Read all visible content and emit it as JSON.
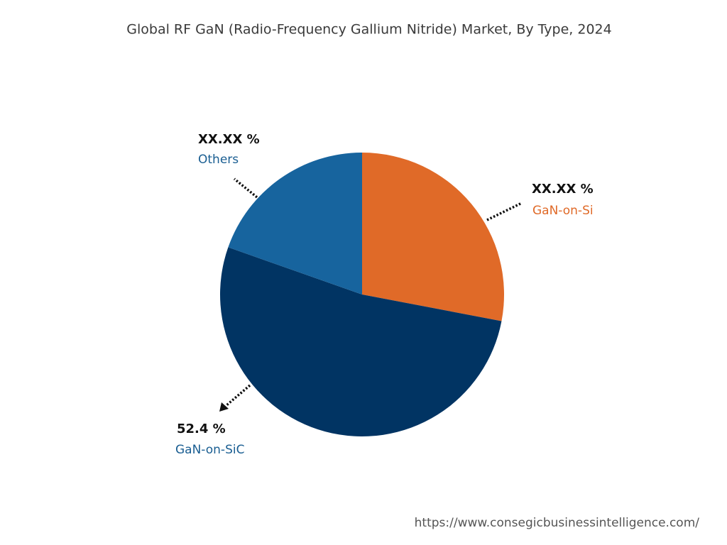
{
  "chart_data": {
    "type": "pie",
    "title": "Global RF GaN (Radio-Frequency Gallium Nitride) Market, By Type, 2024",
    "categories": [
      "GaN-on-Si",
      "GaN-on-SiC",
      "Others"
    ],
    "values": [
      28,
      52.4,
      19.6
    ],
    "value_labels": [
      "XX.XX %",
      "52.4 %",
      "XX.XX %"
    ],
    "colors": [
      "#e06a28",
      "#013463",
      "#17649e"
    ],
    "label_colors": [
      "#e06a28",
      "#1a5e92",
      "#1a5e92"
    ],
    "source": "https://www.consegicbusinessintelligence.com/"
  }
}
